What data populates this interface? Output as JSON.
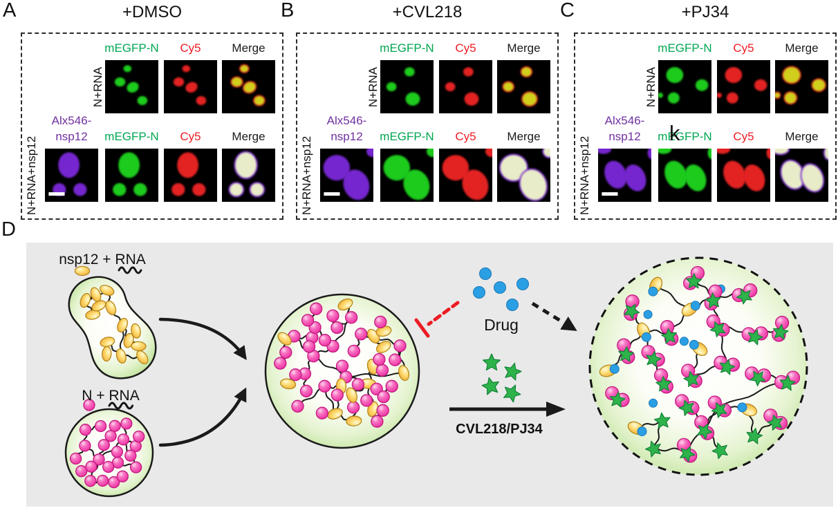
{
  "colors": {
    "green_label": "#00a651",
    "red_label": "#ed1c24",
    "purple_label": "#7030a0",
    "black_label": "#1a1a1a",
    "micro_green": "#1ecb1e",
    "micro_red": "#e32020",
    "micro_merge_yellow": "#d2ce1b",
    "micro_purple": "#7528cf",
    "micro_merge_pale": "#e9ecc8",
    "pink": "#f050b0",
    "yellow": "#ffd966",
    "blue": "#2b9fe3",
    "star_green": "#2db34a",
    "inhibit_red": "#ed1c24",
    "diagram_bg": "#e9e9e9",
    "droplet_rim_green": "#c3e49f"
  },
  "panels": [
    {
      "letter": "A",
      "title": "+DMSO",
      "rows": [
        {
          "row_label": "N+RNA",
          "channels": [
            {
              "label": "mEGFP-N",
              "color_key": "green_label",
              "channel": "green"
            },
            {
              "label": "Cy5",
              "color_key": "red_label",
              "channel": "red"
            },
            {
              "label": "Merge",
              "color_key": "black_label",
              "channel": "merge_yellow"
            }
          ],
          "blobs": [
            [
              42,
              16,
              7.5,
              6.5,
              0
            ],
            [
              28,
              41,
              10,
              8.5,
              0
            ],
            [
              52,
              51,
              11.5,
              9.5,
              -25
            ],
            [
              70,
              76,
              9.5,
              8.5,
              0
            ]
          ]
        },
        {
          "row_label": "N+RNA+nsp12",
          "has_scalebar": true,
          "channels": [
            {
              "label": "Alx546-",
              "label2": "nsp12",
              "color_key": "purple_label",
              "channel": "purple"
            },
            {
              "label": "mEGFP-N",
              "color_key": "green_label",
              "channel": "green"
            },
            {
              "label": "Cy5",
              "color_key": "red_label",
              "channel": "red"
            },
            {
              "label": "Merge",
              "color_key": "black_label",
              "channel": "merge_pale"
            }
          ],
          "blobs": [
            [
              45,
              31,
              20,
              24,
              0
            ],
            [
              27,
              77,
              12.5,
              12,
              0
            ],
            [
              66,
              77,
              12.5,
              12,
              0
            ]
          ]
        }
      ]
    },
    {
      "letter": "B",
      "title": "+CVL218",
      "rows": [
        {
          "row_label": "N+RNA",
          "channels": [
            {
              "label": "mEGFP-N",
              "color_key": "green_label",
              "channel": "green"
            },
            {
              "label": "Cy5",
              "color_key": "red_label",
              "channel": "red"
            },
            {
              "label": "Merge",
              "color_key": "black_label",
              "channel": "merge_yellow"
            }
          ],
          "blobs": [
            [
              55,
              22,
              9.5,
              8.5,
              0
            ],
            [
              21,
              50,
              9.5,
              8.5,
              0
            ],
            [
              61,
              73,
              13.5,
              12.5,
              0
            ]
          ]
        },
        {
          "row_label": "N+RNA+nsp12",
          "has_scalebar": true,
          "channels": [
            {
              "label": "Alx546-",
              "label2": "nsp12",
              "color_key": "purple_label",
              "channel": "purple"
            },
            {
              "label": "mEGFP-N",
              "color_key": "green_label",
              "channel": "green"
            },
            {
              "label": "Cy5",
              "color_key": "red_label",
              "channel": "red"
            },
            {
              "label": "Merge",
              "color_key": "black_label",
              "channel": "merge_pale"
            }
          ],
          "blobs": [
            [
              31,
              36,
              25,
              24,
              0
            ],
            [
              68,
              68,
              24,
              29,
              -20
            ],
            [
              99,
              5,
              12,
              11,
              0
            ]
          ]
        }
      ]
    },
    {
      "letter": "C",
      "title": "+PJ34",
      "rows": [
        {
          "row_label": "N+RNA",
          "channels": [
            {
              "label": "mEGFP-N",
              "color_key": "green_label",
              "channel": "green"
            },
            {
              "label": "Cy5",
              "color_key": "red_label",
              "channel": "red"
            },
            {
              "label": "Merge",
              "color_key": "black_label",
              "channel": "merge_yellow"
            }
          ],
          "blobs": [
            [
              31,
              28,
              16,
              15,
              0
            ],
            [
              82,
              47,
              12,
              11,
              0
            ],
            [
              29,
              71,
              11,
              10.5,
              0
            ],
            [
              4,
              66,
              5,
              5,
              0
            ]
          ]
        },
        {
          "row_label": "N+RNA+nsp12",
          "has_scalebar": true,
          "channels": [
            {
              "label": "Alx546-",
              "label2": "nsp12",
              "color_key": "purple_label",
              "channel": "purple"
            },
            {
              "label": "mEGFP-N",
              "color_key": "green_label",
              "channel": "green"
            },
            {
              "label": "Cy5",
              "color_key": "red_label",
              "channel": "red"
            },
            {
              "label": "Merge",
              "color_key": "black_label",
              "channel": "merge_pale"
            }
          ],
          "blobs": [
            [
              33,
              49,
              20,
              27,
              -22
            ],
            [
              70,
              55,
              19,
              26,
              -22
            ],
            [
              10,
              1,
              15,
              9,
              0
            ],
            [
              101,
              8,
              8,
              12,
              0
            ]
          ]
        }
      ]
    }
  ],
  "artifact_k": "k",
  "diagram": {
    "letter": "D",
    "nsp12_rna_label": "nsp12 + RNA",
    "n_rna_label": "N + RNA",
    "drug_label": "Drug",
    "treatment_label": "CVL218/PJ34",
    "molecule_icons": {
      "nsp12": "yellow-oval",
      "n_protein": "pink-sphere",
      "rna": "black-squiggle",
      "drug": "blue-circle",
      "cvl218_pj34": "green-star"
    },
    "counts": {
      "drug_dots": 5,
      "free_stars": 4,
      "nsp12_droplet_ovals": 14,
      "n_droplet_spheres": 23,
      "mixed_droplet_spheres": 40,
      "mixed_droplet_ovals": 12,
      "drugged_droplet_clusters": 32
    }
  }
}
